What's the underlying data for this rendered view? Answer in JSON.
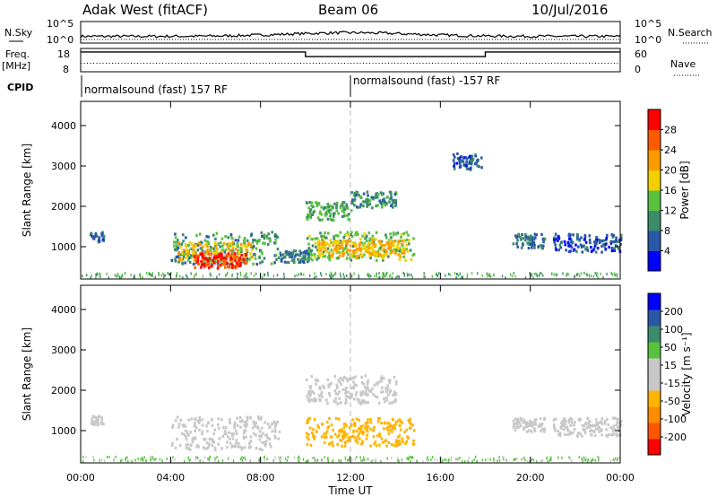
{
  "header": {
    "radar": "Adak West (fitACF)",
    "beam": "Beam 06",
    "date": "10/Jul/2016"
  },
  "left_labels": {
    "nsky": "N.Sky",
    "freq": "Freq.",
    "freq_unit": "[MHz]",
    "cpid": "CPID"
  },
  "right_labels": {
    "nsearch": "N.Search",
    "nave": "Nave"
  },
  "cpid_segments": [
    {
      "label": "normalsound (fast) 157 RF",
      "start_hour": 0
    },
    {
      "label": "normalsound (fast) -157 RF",
      "start_hour": 12
    }
  ],
  "colors": {
    "power_scale": [
      "#0000ff",
      "#2a58a8",
      "#3b8c6a",
      "#58c23f",
      "#f0d000",
      "#ff9a00",
      "#ff5a00",
      "#ff0000"
    ],
    "velocity_scale": [
      "#ff0000",
      "#ff5500",
      "#ff8c00",
      "#ffb400",
      "#c8c8c8",
      "#c8c8c8",
      "#58c23f",
      "#3b8c6a",
      "#2a58a8",
      "#0000ff"
    ]
  },
  "chart_data": [
    {
      "type": "line",
      "name": "nsky-nsearch",
      "left_axis": {
        "label": "N.Sky",
        "ticks": [
          "10^5",
          "10^0"
        ]
      },
      "right_axis": {
        "label": "N.Search",
        "ticks": [
          "10^5",
          "10^0"
        ]
      },
      "x": {
        "range_hours": [
          0,
          24
        ]
      }
    },
    {
      "type": "line",
      "name": "freq-nave",
      "left_axis": {
        "label": "Freq. [MHz]",
        "ticks": [
          18,
          8
        ],
        "range": [
          8,
          18
        ]
      },
      "right_axis": {
        "label": "Nave",
        "ticks": [
          60,
          0
        ],
        "range": [
          0,
          60
        ]
      },
      "freq_steps": [
        {
          "start_hour": 0,
          "end_hour": 10,
          "value": 16.5
        },
        {
          "start_hour": 10,
          "end_hour": 18,
          "value": 14.5
        },
        {
          "start_hour": 18,
          "end_hour": 24,
          "value": 16.5
        }
      ],
      "nave_level": 22
    },
    {
      "type": "heatmap",
      "name": "power",
      "ylabel": "Slant Range [km]",
      "xlabel": "Time UT",
      "x_ticks": [
        "00:00",
        "04:00",
        "08:00",
        "12:00",
        "16:00",
        "20:00",
        "00:00"
      ],
      "x_range_hours": [
        0,
        24
      ],
      "y_ticks": [
        1000,
        2000,
        3000,
        4000
      ],
      "y_range": [
        200,
        4600
      ],
      "colorbar": {
        "label": "Power [dB]",
        "ticks": [
          4,
          8,
          12,
          16,
          20,
          24,
          28
        ],
        "range": [
          0,
          32
        ]
      },
      "regions": [
        {
          "t0": 4.0,
          "t1": 8.8,
          "r0": 550,
          "r1": 1350,
          "value": 10
        },
        {
          "t0": 4.3,
          "t1": 7.6,
          "r0": 600,
          "r1": 1100,
          "value": 18
        },
        {
          "t0": 5.0,
          "t1": 7.4,
          "r0": 450,
          "r1": 820,
          "value": 28
        },
        {
          "t0": 8.8,
          "t1": 10.2,
          "r0": 600,
          "r1": 900,
          "value": 8
        },
        {
          "t0": 10.0,
          "t1": 14.8,
          "r0": 650,
          "r1": 1350,
          "value": 14
        },
        {
          "t0": 10.5,
          "t1": 14.5,
          "r0": 750,
          "r1": 1150,
          "value": 20
        },
        {
          "t0": 10.0,
          "t1": 12.0,
          "r0": 1650,
          "r1": 2100,
          "value": 12
        },
        {
          "t0": 12.0,
          "t1": 14.0,
          "r0": 1950,
          "r1": 2350,
          "value": 10
        },
        {
          "t0": 19.2,
          "t1": 20.6,
          "r0": 950,
          "r1": 1300,
          "value": 8
        },
        {
          "t0": 21.0,
          "t1": 24.0,
          "r0": 850,
          "r1": 1300,
          "value": 6
        },
        {
          "t0": 0.4,
          "t1": 1.0,
          "r0": 1100,
          "r1": 1350,
          "value": 6
        },
        {
          "t0": 16.5,
          "t1": 17.8,
          "r0": 2900,
          "r1": 3300,
          "value": 6
        }
      ]
    },
    {
      "type": "heatmap",
      "name": "velocity",
      "ylabel": "Slant Range [km]",
      "xlabel": "Time UT",
      "x_ticks": [
        "00:00",
        "04:00",
        "08:00",
        "12:00",
        "16:00",
        "20:00",
        "00:00"
      ],
      "x_range_hours": [
        0,
        24
      ],
      "y_ticks": [
        1000,
        2000,
        3000,
        4000
      ],
      "y_range": [
        200,
        4600
      ],
      "colorbar": {
        "label": "Velocity [m s⁻¹]",
        "ticks": [
          200,
          100,
          50,
          15,
          -15,
          -50,
          -100,
          -200
        ],
        "range": [
          -250,
          250
        ]
      },
      "regions": [
        {
          "t0": 4.0,
          "t1": 8.8,
          "r0": 500,
          "r1": 1350,
          "value": 0
        },
        {
          "t0": 10.0,
          "t1": 14.8,
          "r0": 600,
          "r1": 1300,
          "value": -70
        },
        {
          "t0": 10.0,
          "t1": 14.0,
          "r0": 1650,
          "r1": 2350,
          "value": 0
        },
        {
          "t0": 19.2,
          "t1": 20.6,
          "r0": 950,
          "r1": 1300,
          "value": 0
        },
        {
          "t0": 21.0,
          "t1": 24.0,
          "r0": 850,
          "r1": 1300,
          "value": 0
        },
        {
          "t0": 0.4,
          "t1": 1.0,
          "r0": 1100,
          "r1": 1350,
          "value": 0
        }
      ]
    }
  ]
}
